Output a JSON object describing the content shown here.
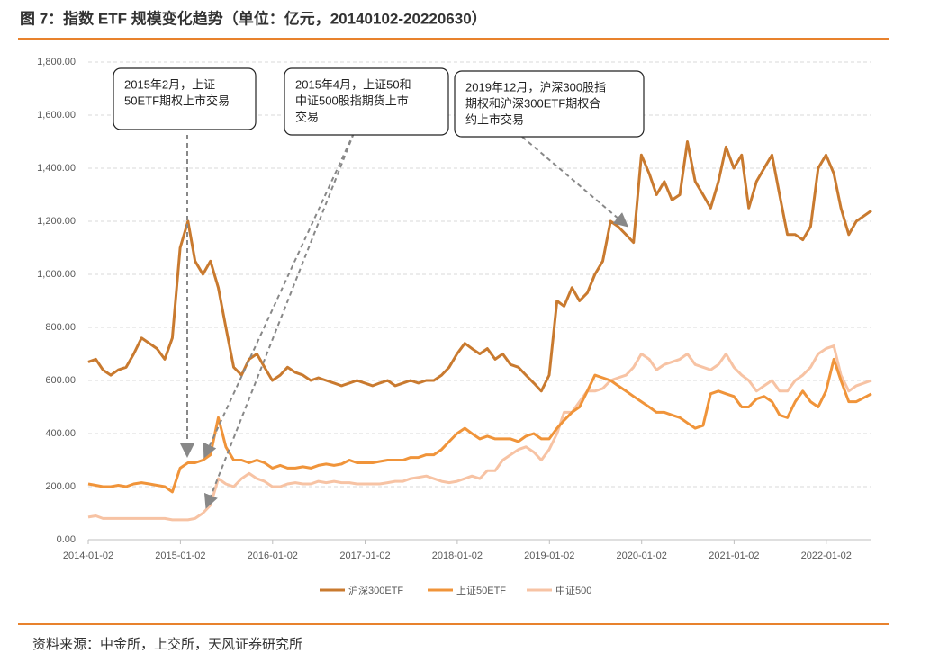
{
  "chart_data": {
    "type": "line",
    "title": "图 7：指数 ETF 规模变化趋势（单位：亿元，20140102-20220630）",
    "source": "资料来源：中金所，上交所，天风证券研究所",
    "x": [
      "2014-01-02",
      "2014-02-01",
      "2014-03-01",
      "2014-04-01",
      "2014-05-01",
      "2014-06-01",
      "2014-07-01",
      "2014-08-01",
      "2014-09-01",
      "2014-10-01",
      "2014-11-01",
      "2014-12-01",
      "2015-01-01",
      "2015-02-01",
      "2015-03-01",
      "2015-04-01",
      "2015-05-01",
      "2015-06-01",
      "2015-07-01",
      "2015-08-01",
      "2015-09-01",
      "2015-10-01",
      "2015-11-01",
      "2015-12-01",
      "2016-01-01",
      "2016-02-01",
      "2016-03-01",
      "2016-04-01",
      "2016-05-01",
      "2016-06-01",
      "2016-07-01",
      "2016-08-01",
      "2016-09-01",
      "2016-10-01",
      "2016-11-01",
      "2016-12-01",
      "2017-01-01",
      "2017-02-01",
      "2017-03-01",
      "2017-04-01",
      "2017-05-01",
      "2017-06-01",
      "2017-07-01",
      "2017-08-01",
      "2017-09-01",
      "2017-10-01",
      "2017-11-01",
      "2017-12-01",
      "2018-01-01",
      "2018-02-01",
      "2018-03-01",
      "2018-04-01",
      "2018-05-01",
      "2018-06-01",
      "2018-07-01",
      "2018-08-01",
      "2018-09-01",
      "2018-10-01",
      "2018-11-01",
      "2018-12-01",
      "2019-01-01",
      "2019-02-01",
      "2019-03-01",
      "2019-04-01",
      "2019-05-01",
      "2019-06-01",
      "2019-07-01",
      "2019-08-01",
      "2019-09-01",
      "2019-10-01",
      "2019-11-01",
      "2019-12-01",
      "2020-01-01",
      "2020-02-01",
      "2020-03-01",
      "2020-04-01",
      "2020-05-01",
      "2020-06-01",
      "2020-07-01",
      "2020-08-01",
      "2020-09-01",
      "2020-10-01",
      "2020-11-01",
      "2020-12-01",
      "2021-01-01",
      "2021-02-01",
      "2021-03-01",
      "2021-04-01",
      "2021-05-01",
      "2021-06-01",
      "2021-07-01",
      "2021-08-01",
      "2021-09-01",
      "2021-10-01",
      "2021-11-01",
      "2021-12-01",
      "2022-01-01",
      "2022-02-01",
      "2022-03-01",
      "2022-04-01",
      "2022-05-01",
      "2022-06-30"
    ],
    "series": [
      {
        "name": "沪深300ETF",
        "color": "#c97a2f",
        "values": [
          670,
          680,
          640,
          620,
          640,
          650,
          700,
          760,
          740,
          720,
          680,
          760,
          1100,
          1200,
          1050,
          1000,
          1050,
          950,
          800,
          650,
          620,
          680,
          700,
          650,
          600,
          620,
          650,
          630,
          620,
          600,
          610,
          600,
          590,
          580,
          590,
          600,
          590,
          580,
          590,
          600,
          580,
          590,
          600,
          590,
          600,
          600,
          620,
          650,
          700,
          740,
          720,
          700,
          720,
          680,
          700,
          660,
          650,
          620,
          590,
          560,
          620,
          900,
          880,
          950,
          900,
          930,
          1000,
          1050,
          1200,
          1180,
          1150,
          1120,
          1450,
          1380,
          1300,
          1350,
          1280,
          1300,
          1500,
          1350,
          1300,
          1250,
          1350,
          1480,
          1400,
          1450,
          1250,
          1350,
          1400,
          1450,
          1300,
          1150,
          1150,
          1130,
          1180,
          1400,
          1450,
          1380,
          1250,
          1150,
          1200,
          1240
        ]
      },
      {
        "name": "上证50ETF",
        "color": "#f0943a",
        "values": [
          210,
          205,
          200,
          200,
          205,
          200,
          210,
          215,
          210,
          205,
          200,
          180,
          270,
          290,
          290,
          300,
          320,
          460,
          350,
          300,
          300,
          290,
          300,
          290,
          270,
          280,
          270,
          270,
          275,
          270,
          280,
          285,
          280,
          285,
          300,
          290,
          290,
          290,
          295,
          300,
          300,
          300,
          310,
          310,
          320,
          320,
          340,
          370,
          400,
          420,
          400,
          380,
          390,
          380,
          380,
          380,
          370,
          390,
          400,
          380,
          380,
          420,
          450,
          480,
          500,
          560,
          620,
          610,
          600,
          580,
          560,
          540,
          520,
          500,
          480,
          480,
          470,
          460,
          440,
          420,
          430,
          550,
          560,
          550,
          540,
          500,
          500,
          530,
          540,
          520,
          470,
          460,
          520,
          560,
          520,
          500,
          560,
          680,
          600,
          520,
          520,
          550
        ]
      },
      {
        "name": "中证500",
        "color": "#f7c3a4",
        "values": [
          85,
          90,
          80,
          80,
          80,
          80,
          80,
          80,
          80,
          80,
          80,
          75,
          75,
          75,
          80,
          100,
          130,
          230,
          210,
          200,
          230,
          250,
          230,
          220,
          200,
          200,
          210,
          215,
          210,
          210,
          220,
          215,
          220,
          215,
          215,
          210,
          210,
          210,
          210,
          215,
          220,
          220,
          230,
          235,
          240,
          230,
          220,
          215,
          220,
          230,
          240,
          230,
          260,
          260,
          300,
          320,
          340,
          350,
          330,
          300,
          340,
          400,
          480,
          480,
          520,
          560,
          560,
          570,
          600,
          610,
          620,
          650,
          700,
          680,
          640,
          660,
          670,
          680,
          700,
          660,
          650,
          640,
          660,
          700,
          650,
          620,
          600,
          560,
          580,
          600,
          560,
          560,
          600,
          620,
          650,
          700,
          720,
          730,
          620,
          560,
          580,
          600
        ]
      }
    ],
    "xlim": [
      "2014-01-02",
      "2022-06-30"
    ],
    "xticks": [
      "2014-01-02",
      "2015-01-02",
      "2016-01-02",
      "2017-01-02",
      "2018-01-02",
      "2019-01-02",
      "2020-01-02",
      "2021-01-02",
      "2022-01-02"
    ],
    "ylim": [
      0,
      1800
    ],
    "yticks": [
      {
        "value": 0,
        "label": "0.00"
      },
      {
        "value": 200,
        "label": "200.00"
      },
      {
        "value": 400,
        "label": "400.00"
      },
      {
        "value": 600,
        "label": "600.00"
      },
      {
        "value": 800,
        "label": "800.00"
      },
      {
        "value": 1000,
        "label": "1,000.00"
      },
      {
        "value": 1200,
        "label": "1,200.00"
      },
      {
        "value": 1400,
        "label": "1,400.00"
      },
      {
        "value": 1600,
        "label": "1,600.00"
      },
      {
        "value": 1800,
        "label": "1,800.00"
      }
    ],
    "grid": true,
    "legend": "bottom",
    "annotations": [
      {
        "lines": [
          "2015年2月，上证",
          "50ETF期权上市交易"
        ]
      },
      {
        "lines": [
          "2015年4月，上证50和",
          "中证500股指期货上市",
          "交易"
        ]
      },
      {
        "lines": [
          "2019年12月，沪深300股指",
          "期权和沪深300ETF期权合",
          "约上市交易"
        ]
      }
    ]
  }
}
